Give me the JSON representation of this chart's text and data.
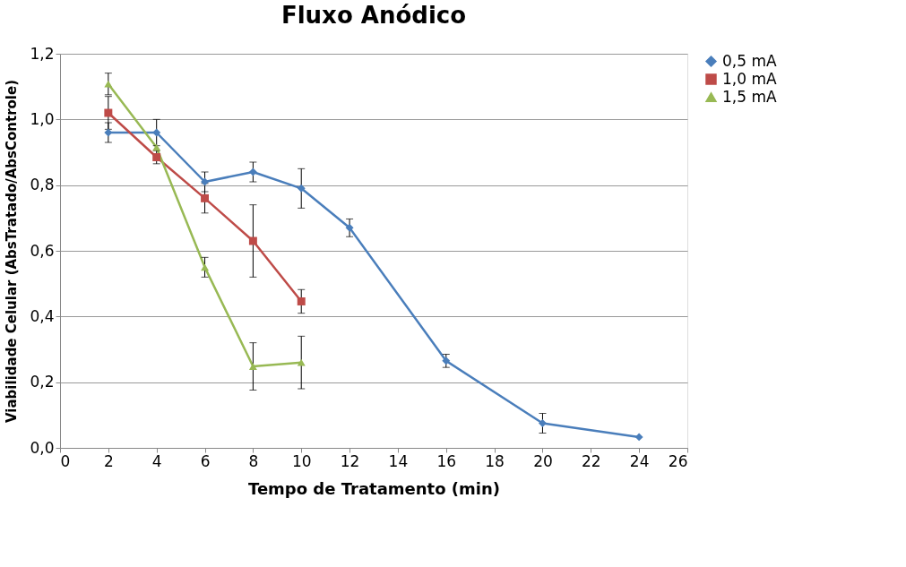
{
  "chart_data": {
    "type": "line",
    "title": "Fluxo Anódico",
    "xlabel": "Tempo de Tratamento (min)",
    "ylabel": "Viabilidade Celular (AbsTratado/AbsControle)",
    "xlim": [
      0,
      26
    ],
    "xticks": [
      0,
      2,
      4,
      6,
      8,
      10,
      12,
      14,
      16,
      18,
      20,
      22,
      24,
      26
    ],
    "ylim": [
      0,
      1.2
    ],
    "yticks": [
      {
        "value": 0,
        "label": "0,0"
      },
      {
        "value": 0.2,
        "label": "0,2"
      },
      {
        "value": 0.4,
        "label": "0,4"
      },
      {
        "value": 0.6,
        "label": "0,6"
      },
      {
        "value": 0.8,
        "label": "0,8"
      },
      {
        "value": 1.0,
        "label": "1,0"
      },
      {
        "value": 1.2,
        "label": "1,2"
      }
    ],
    "grid": "y",
    "legend": "right",
    "series": [
      {
        "name": "0,5 mA",
        "color": "#4a7ebb",
        "marker": "diamond",
        "x": [
          2,
          4,
          6,
          8,
          10,
          12,
          16,
          20,
          24
        ],
        "values": [
          0.96,
          0.96,
          0.81,
          0.84,
          0.79,
          0.67,
          0.265,
          0.075,
          0.033
        ],
        "errors": [
          0.03,
          0.04,
          0.03,
          0.03,
          0.06,
          0.027,
          0.02,
          0.03,
          null
        ]
      },
      {
        "name": "1,0 mA",
        "color": "#be4b48",
        "marker": "square",
        "x": [
          2,
          4,
          6,
          8,
          10
        ],
        "values": [
          1.02,
          0.885,
          0.76,
          0.63,
          0.446
        ],
        "errors": [
          0.05,
          0.02,
          0.045,
          0.11,
          0.036
        ]
      },
      {
        "name": "1,5 mA",
        "color": "#98b954",
        "marker": "triangle",
        "x": [
          2,
          4,
          6,
          8,
          10
        ],
        "values": [
          1.108,
          0.915,
          0.55,
          0.248,
          0.26
        ],
        "errors": [
          0.033,
          null,
          0.03,
          0.072,
          0.08
        ]
      }
    ]
  }
}
